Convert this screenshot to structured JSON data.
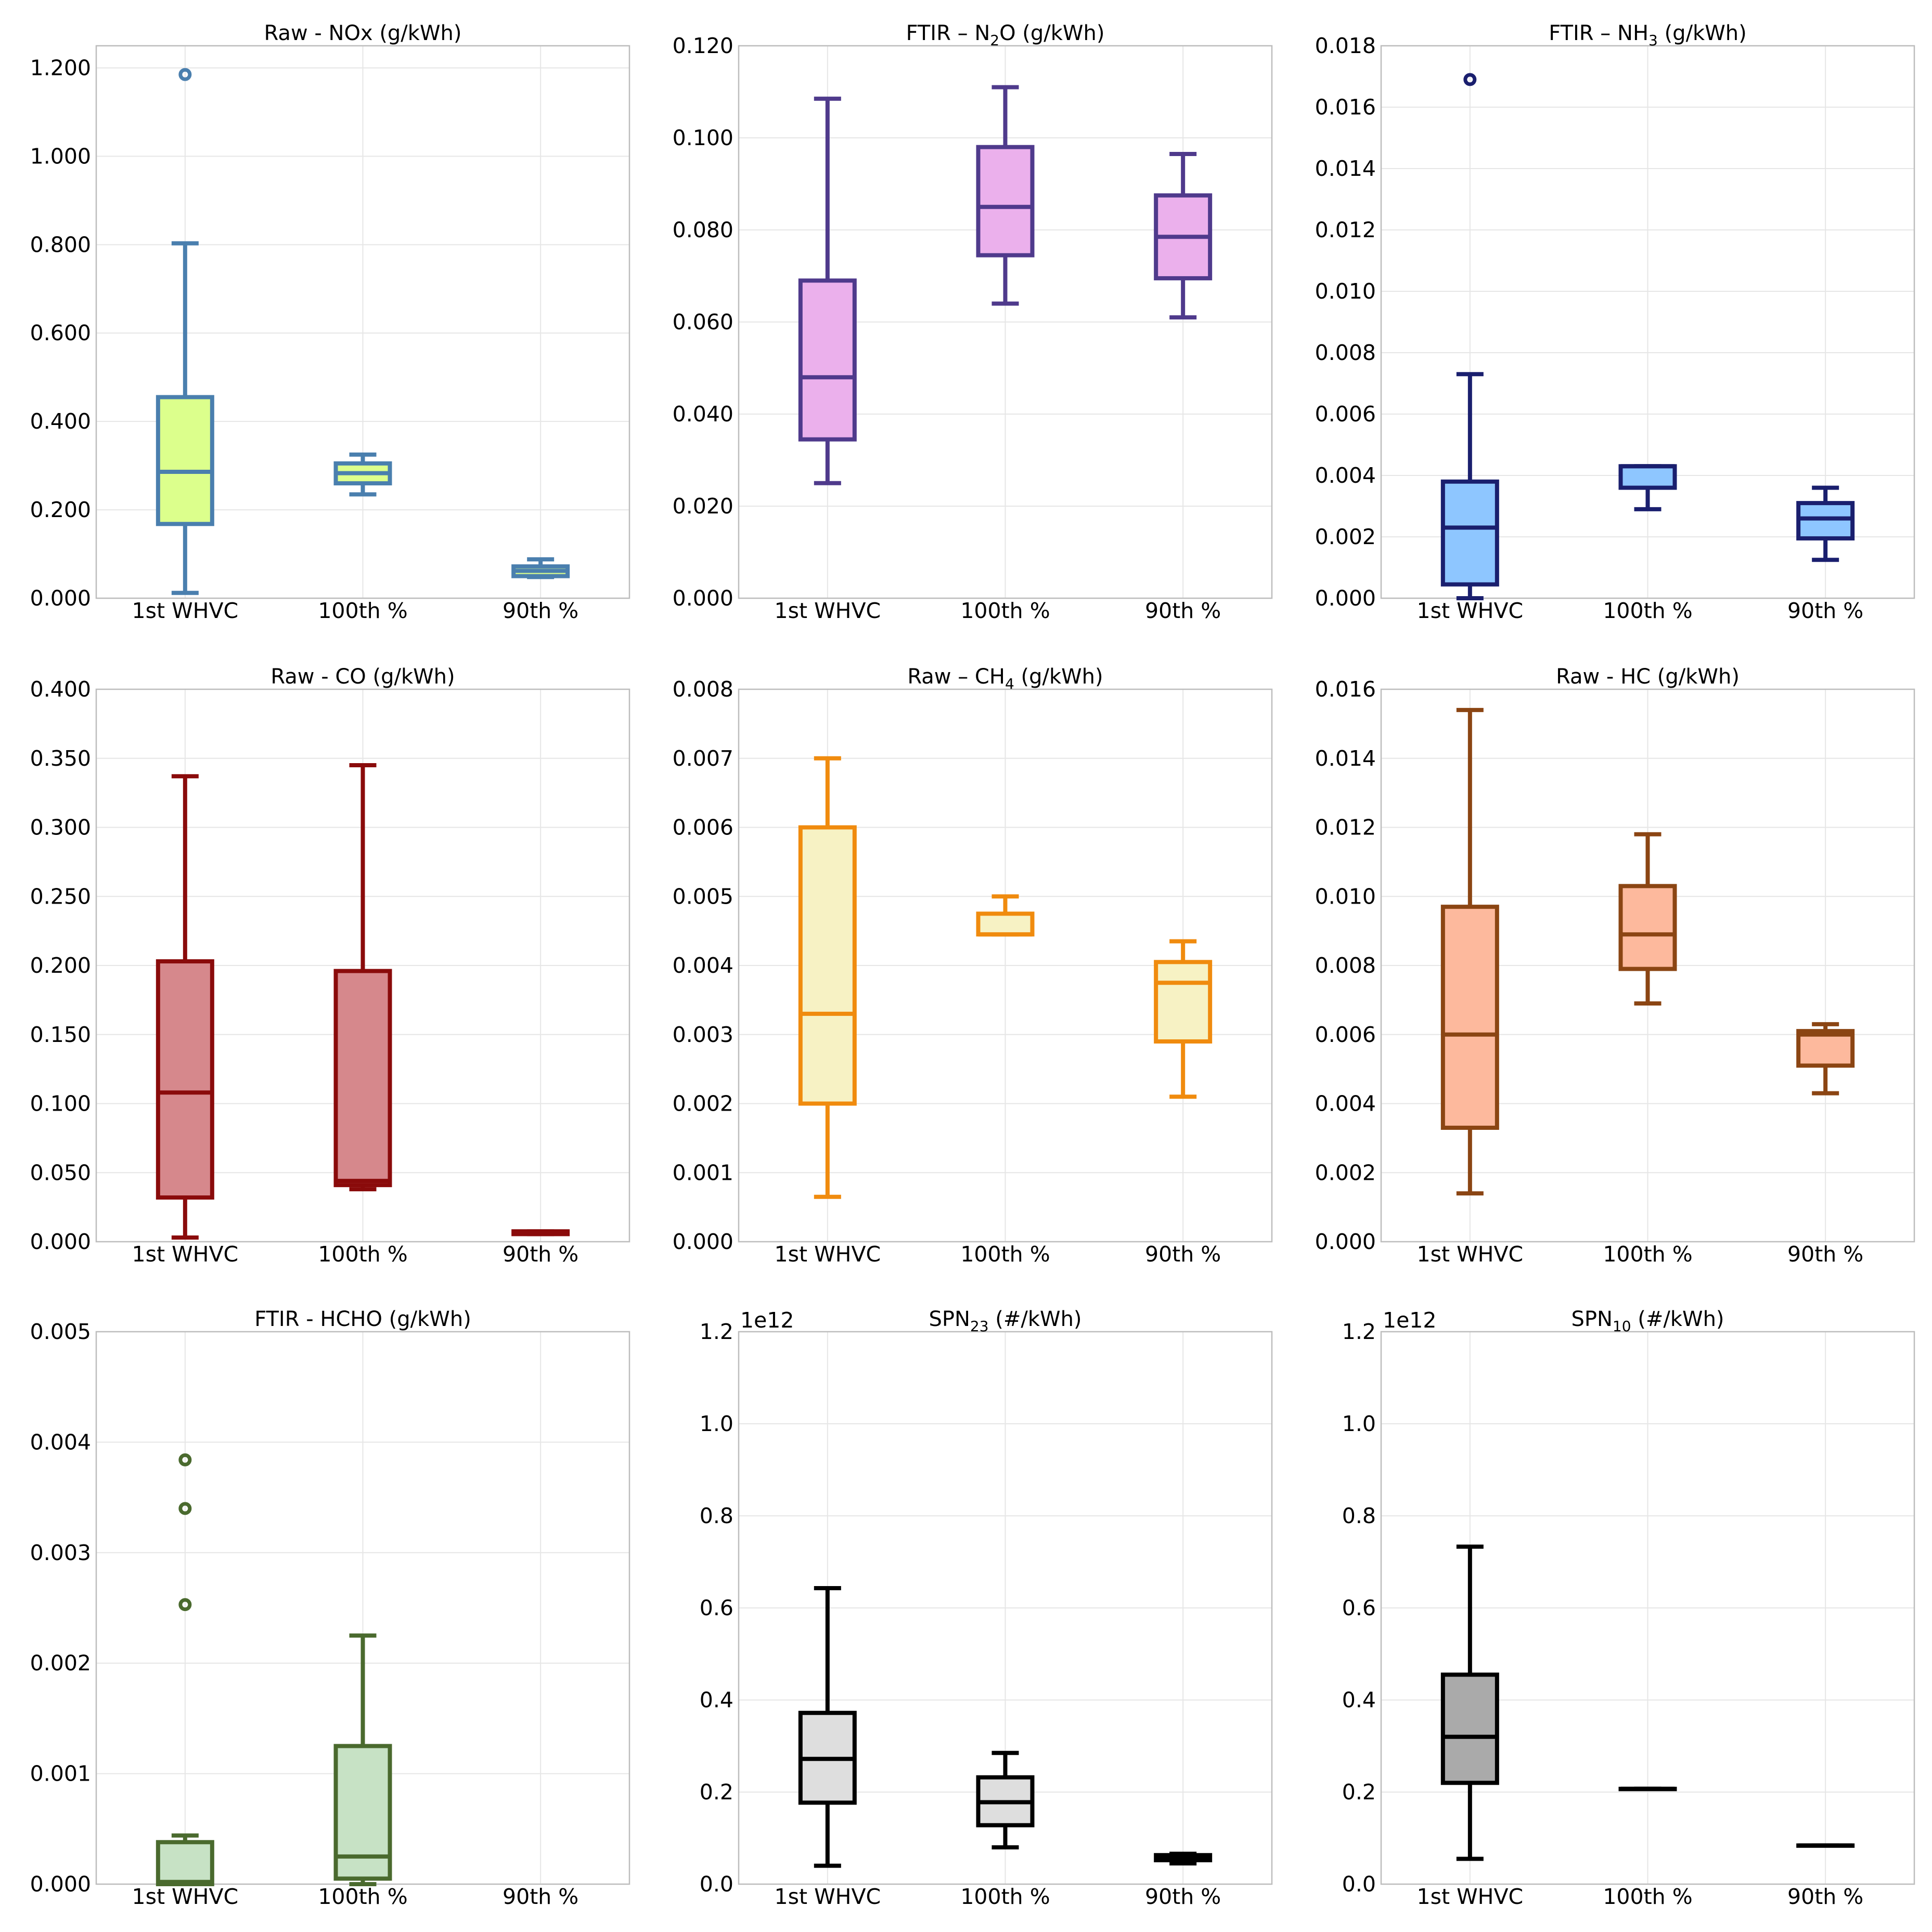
{
  "chart_data": [
    {
      "type": "box",
      "title": "Raw - NOx (g/kWh)",
      "categories": [
        "1st WHVC",
        "100th %",
        "90th %"
      ],
      "ylim": [
        0,
        1.25
      ],
      "yticks": [
        0,
        0.2,
        0.4,
        0.6,
        0.8,
        1.0,
        1.2
      ],
      "yticklabels": [
        "0.000",
        "0.200",
        "0.400",
        "0.600",
        "0.800",
        "1.000",
        "1.200"
      ],
      "fill": "#dcff8c",
      "edge": "#4a7fae",
      "boxes": [
        {
          "whislo": 0.012,
          "q1": 0.168,
          "med": 0.286,
          "q3": 0.455,
          "whishi": 0.803,
          "fliers": [
            1.185
          ]
        },
        {
          "whislo": 0.235,
          "q1": 0.26,
          "med": 0.283,
          "q3": 0.305,
          "whishi": 0.325,
          "fliers": []
        },
        {
          "whislo": 0.048,
          "q1": 0.05,
          "med": 0.062,
          "q3": 0.072,
          "whishi": 0.088,
          "fliers": []
        }
      ]
    },
    {
      "type": "box",
      "title": "FTIR – N",
      "title_sub": "2",
      "title_rest": "O (g/kWh)",
      "categories": [
        "1st WHVC",
        "100th %",
        "90th %"
      ],
      "ylim": [
        0,
        0.12
      ],
      "yticks": [
        0,
        0.02,
        0.04,
        0.06,
        0.08,
        0.1,
        0.12
      ],
      "yticklabels": [
        "0.000",
        "0.020",
        "0.040",
        "0.060",
        "0.080",
        "0.100",
        "0.120"
      ],
      "fill": "#ebb0ec",
      "edge": "#4f3a8c",
      "boxes": [
        {
          "whislo": 0.025,
          "q1": 0.0345,
          "med": 0.048,
          "q3": 0.069,
          "whishi": 0.1085,
          "fliers": []
        },
        {
          "whislo": 0.064,
          "q1": 0.0745,
          "med": 0.085,
          "q3": 0.098,
          "whishi": 0.111,
          "fliers": []
        },
        {
          "whislo": 0.061,
          "q1": 0.0695,
          "med": 0.0785,
          "q3": 0.0875,
          "whishi": 0.0965,
          "fliers": []
        }
      ]
    },
    {
      "type": "box",
      "title": "FTIR – NH",
      "title_sub": "3",
      "title_rest": " (g/kWh)",
      "categories": [
        "1st WHVC",
        "100th %",
        "90th %"
      ],
      "ylim": [
        0,
        0.018
      ],
      "yticks": [
        0,
        0.002,
        0.004,
        0.006,
        0.008,
        0.01,
        0.012,
        0.014,
        0.016,
        0.018
      ],
      "yticklabels": [
        "0.000",
        "0.002",
        "0.004",
        "0.006",
        "0.008",
        "0.010",
        "0.012",
        "0.014",
        "0.016",
        "0.018"
      ],
      "fill": "#8ec6ff",
      "edge": "#1a1f6e",
      "boxes": [
        {
          "whislo": 0.0,
          "q1": 0.00045,
          "med": 0.0023,
          "q3": 0.0038,
          "whishi": 0.0073,
          "fliers": [
            0.0169
          ]
        },
        {
          "whislo": 0.0029,
          "q1": 0.0036,
          "med": 0.0043,
          "q3": 0.0043,
          "whishi": 0.0043,
          "fliers": []
        },
        {
          "whislo": 0.00125,
          "q1": 0.00195,
          "med": 0.0026,
          "q3": 0.0031,
          "whishi": 0.0036,
          "fliers": []
        }
      ]
    },
    {
      "type": "box",
      "title": "Raw - CO (g/kWh)",
      "categories": [
        "1st WHVC",
        "100th %",
        "90th %"
      ],
      "ylim": [
        0,
        0.4
      ],
      "yticks": [
        0,
        0.05,
        0.1,
        0.15,
        0.2,
        0.25,
        0.3,
        0.35,
        0.4
      ],
      "yticklabels": [
        "0.000",
        "0.050",
        "0.100",
        "0.150",
        "0.200",
        "0.250",
        "0.300",
        "0.350",
        "0.400"
      ],
      "fill": "#d6888c",
      "edge": "#8a0b0b",
      "boxes": [
        {
          "whislo": 0.003,
          "q1": 0.032,
          "med": 0.108,
          "q3": 0.203,
          "whishi": 0.337,
          "fliers": []
        },
        {
          "whislo": 0.038,
          "q1": 0.041,
          "med": 0.044,
          "q3": 0.196,
          "whishi": 0.345,
          "fliers": []
        },
        {
          "whislo": 0.0055,
          "q1": 0.0055,
          "med": 0.0065,
          "q3": 0.0075,
          "whishi": 0.0075,
          "fliers": []
        }
      ]
    },
    {
      "type": "box",
      "title": "Raw – CH",
      "title_sub": "4",
      "title_rest": " (g/kWh)",
      "categories": [
        "1st WHVC",
        "100th %",
        "90th %"
      ],
      "ylim": [
        0,
        0.008
      ],
      "yticks": [
        0,
        0.001,
        0.002,
        0.003,
        0.004,
        0.005,
        0.006,
        0.007,
        0.008
      ],
      "yticklabels": [
        "0.000",
        "0.001",
        "0.002",
        "0.003",
        "0.004",
        "0.005",
        "0.006",
        "0.007",
        "0.008"
      ],
      "fill": "#f7f2c4",
      "edge": "#f08b0e",
      "boxes": [
        {
          "whislo": 0.00065,
          "q1": 0.002,
          "med": 0.0033,
          "q3": 0.006,
          "whishi": 0.007,
          "fliers": []
        },
        {
          "whislo": 0.00445,
          "q1": 0.00445,
          "med": 0.00445,
          "q3": 0.00475,
          "whishi": 0.005,
          "fliers": []
        },
        {
          "whislo": 0.0021,
          "q1": 0.0029,
          "med": 0.00375,
          "q3": 0.00405,
          "whishi": 0.00435,
          "fliers": []
        }
      ]
    },
    {
      "type": "box",
      "title": "Raw - HC (g/kWh)",
      "categories": [
        "1st WHVC",
        "100th %",
        "90th %"
      ],
      "ylim": [
        0,
        0.016
      ],
      "yticks": [
        0,
        0.002,
        0.004,
        0.006,
        0.008,
        0.01,
        0.012,
        0.014,
        0.016
      ],
      "yticklabels": [
        "0.000",
        "0.002",
        "0.004",
        "0.006",
        "0.008",
        "0.010",
        "0.012",
        "0.014",
        "0.016"
      ],
      "fill": "#fdb99d",
      "edge": "#8b4513",
      "boxes": [
        {
          "whislo": 0.0014,
          "q1": 0.0033,
          "med": 0.006,
          "q3": 0.0097,
          "whishi": 0.0154,
          "fliers": []
        },
        {
          "whislo": 0.0069,
          "q1": 0.0079,
          "med": 0.0089,
          "q3": 0.0103,
          "whishi": 0.0118,
          "fliers": []
        },
        {
          "whislo": 0.0043,
          "q1": 0.0051,
          "med": 0.006,
          "q3": 0.0061,
          "whishi": 0.0063,
          "fliers": []
        }
      ]
    },
    {
      "type": "box",
      "title": "FTIR - HCHO (g/kWh)",
      "categories": [
        "1st WHVC",
        "100th %",
        "90th %"
      ],
      "ylim": [
        0,
        0.005
      ],
      "yticks": [
        0,
        0.001,
        0.002,
        0.003,
        0.004,
        0.005
      ],
      "yticklabels": [
        "0.000",
        "0.001",
        "0.002",
        "0.003",
        "0.004",
        "0.005"
      ],
      "fill": "#c7e2c5",
      "edge": "#4a6a2e",
      "boxes": [
        {
          "whislo": 0.0,
          "q1": 0.0,
          "med": 2e-05,
          "q3": 0.00038,
          "whishi": 0.00044,
          "fliers": [
            0.00384,
            0.0034,
            0.00253
          ]
        },
        {
          "whislo": 0.0,
          "q1": 5e-05,
          "med": 0.00025,
          "q3": 0.00125,
          "whishi": 0.00225,
          "fliers": []
        },
        null
      ]
    },
    {
      "type": "box",
      "title": "SPN",
      "title_sub": "23",
      "title_rest": " (#/kWh)",
      "offset_label": "1e12",
      "categories": [
        "1st WHVC",
        "100th %",
        "90th %"
      ],
      "ylim": [
        0,
        1.2
      ],
      "yticks": [
        0,
        0.2,
        0.4,
        0.6,
        0.8,
        1.0,
        1.2
      ],
      "yticklabels": [
        "0.0",
        "0.2",
        "0.4",
        "0.6",
        "0.8",
        "1.0",
        "1.2"
      ],
      "fill": "#dedede",
      "edge": "#000000",
      "boxes": [
        {
          "whislo": 0.04,
          "q1": 0.177,
          "med": 0.272,
          "q3": 0.372,
          "whishi": 0.643,
          "fliers": []
        },
        {
          "whislo": 0.08,
          "q1": 0.128,
          "med": 0.178,
          "q3": 0.232,
          "whishi": 0.285,
          "fliers": []
        },
        {
          "whislo": 0.045,
          "q1": 0.052,
          "med": 0.058,
          "q3": 0.063,
          "whishi": 0.066,
          "fliers": []
        }
      ]
    },
    {
      "type": "box",
      "title": "SPN",
      "title_sub": "10",
      "title_rest": " (#/kWh)",
      "offset_label": "1e12",
      "categories": [
        "1st WHVC",
        "100th %",
        "90th %"
      ],
      "ylim": [
        0,
        1.2
      ],
      "yticks": [
        0,
        0.2,
        0.4,
        0.6,
        0.8,
        1.0,
        1.2
      ],
      "yticklabels": [
        "0.0",
        "0.2",
        "0.4",
        "0.6",
        "0.8",
        "1.0",
        "1.2"
      ],
      "fill": "#aaaaaa",
      "edge": "#000000",
      "boxes": [
        {
          "whislo": 0.055,
          "q1": 0.22,
          "med": 0.32,
          "q3": 0.455,
          "whishi": 0.733,
          "fliers": []
        },
        {
          "whislo": 0.207,
          "q1": 0.207,
          "med": 0.207,
          "q3": 0.207,
          "whishi": 0.207,
          "fliers": []
        },
        {
          "whislo": 0.084,
          "q1": 0.084,
          "med": 0.084,
          "q3": 0.084,
          "whishi": 0.084,
          "fliers": []
        }
      ]
    }
  ]
}
